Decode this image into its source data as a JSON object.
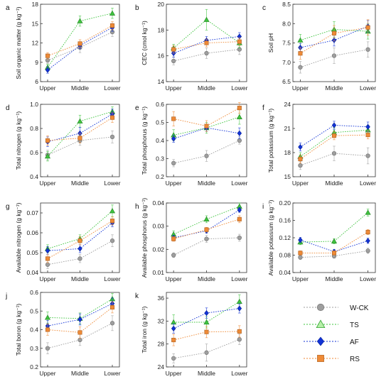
{
  "series_styles": [
    {
      "name": "W-CK",
      "color": "#9e9e9e",
      "marker": "circle"
    },
    {
      "name": "TS",
      "color": "#3ec43e",
      "marker": "triangle"
    },
    {
      "name": "AF",
      "color": "#1133d6",
      "marker": "diamond"
    },
    {
      "name": "RS",
      "color": "#ef8a36",
      "marker": "square"
    }
  ],
  "chart_data": [
    {
      "id": "a",
      "type": "line",
      "ylabel": "Soil organic matter (g kg⁻¹)",
      "categories": [
        "Upper",
        "Middle",
        "Lower"
      ],
      "ylim": [
        6,
        18
      ],
      "yticks": [
        6,
        9,
        12,
        15,
        18
      ],
      "yfmt": 0,
      "series": [
        {
          "name": "W-CK",
          "values": [
            9.3,
            11.3,
            13.7
          ],
          "err": [
            0.5,
            0.8,
            0.7
          ]
        },
        {
          "name": "TS",
          "values": [
            8.2,
            15.4,
            16.6
          ],
          "err": [
            0.5,
            0.8,
            0.8
          ]
        },
        {
          "name": "AF",
          "values": [
            7.8,
            11.6,
            14.4
          ],
          "err": [
            0.5,
            0.5,
            0.6
          ]
        },
        {
          "name": "RS",
          "values": [
            10.0,
            11.9,
            14.7
          ],
          "err": [
            0.5,
            0.6,
            0.6
          ]
        }
      ]
    },
    {
      "id": "b",
      "type": "line",
      "ylabel": "CEC (cmol kg⁻¹)",
      "categories": [
        "Upper",
        "Middle",
        "Lower"
      ],
      "ylim": [
        14,
        20
      ],
      "yticks": [
        14,
        16,
        18,
        20
      ],
      "yfmt": 0,
      "series": [
        {
          "name": "W-CK",
          "values": [
            15.6,
            16.2,
            16.5
          ],
          "err": [
            0.3,
            0.4,
            0.4
          ]
        },
        {
          "name": "TS",
          "values": [
            16.6,
            18.8,
            17.0
          ],
          "err": [
            0.3,
            0.8,
            0.4
          ]
        },
        {
          "name": "AF",
          "values": [
            16.2,
            17.2,
            17.5
          ],
          "err": [
            0.3,
            0.3,
            0.3
          ]
        },
        {
          "name": "RS",
          "values": [
            16.5,
            17.0,
            17.1
          ],
          "err": [
            0.3,
            0.3,
            0.3
          ]
        }
      ]
    },
    {
      "id": "c",
      "type": "line",
      "ylabel": "Soil pH",
      "categories": [
        "Upper",
        "Middle",
        "Lower"
      ],
      "ylim": [
        6.5,
        8.5
      ],
      "yticks": [
        6.5,
        7.0,
        7.5,
        8.0,
        8.5
      ],
      "yfmt": 1,
      "series": [
        {
          "name": "W-CK",
          "values": [
            6.87,
            7.17,
            7.33
          ],
          "err": [
            0.15,
            0.2,
            0.2
          ]
        },
        {
          "name": "TS",
          "values": [
            7.57,
            7.85,
            7.8
          ],
          "err": [
            0.15,
            0.2,
            0.2
          ]
        },
        {
          "name": "AF",
          "values": [
            7.38,
            7.57,
            7.93
          ],
          "err": [
            0.1,
            0.15,
            0.15
          ]
        },
        {
          "name": "RS",
          "values": [
            7.23,
            7.75,
            7.9
          ],
          "err": [
            0.15,
            0.2,
            0.2
          ]
        }
      ]
    },
    {
      "id": "d",
      "type": "line",
      "ylabel": "Total nitrogen (g kg⁻¹)",
      "categories": [
        "Upper",
        "Middle",
        "Lower"
      ],
      "ylim": [
        0.4,
        1.0
      ],
      "yticks": [
        0.4,
        0.6,
        0.8,
        1.0
      ],
      "yfmt": 1,
      "series": [
        {
          "name": "W-CK",
          "values": [
            0.58,
            0.7,
            0.73
          ],
          "err": [
            0.04,
            0.04,
            0.05
          ]
        },
        {
          "name": "TS",
          "values": [
            0.57,
            0.86,
            0.94
          ],
          "err": [
            0.04,
            0.05,
            0.04
          ]
        },
        {
          "name": "AF",
          "values": [
            0.69,
            0.76,
            0.92
          ],
          "err": [
            0.04,
            0.05,
            0.04
          ]
        },
        {
          "name": "RS",
          "values": [
            0.7,
            0.72,
            0.89
          ],
          "err": [
            0.04,
            0.04,
            0.04
          ]
        }
      ]
    },
    {
      "id": "e",
      "type": "line",
      "ylabel": "Total phosphorus (g kg⁻¹)",
      "categories": [
        "Upper",
        "Middle",
        "Lower"
      ],
      "ylim": [
        0.2,
        0.6
      ],
      "yticks": [
        0.2,
        0.3,
        0.4,
        0.5,
        0.6
      ],
      "yfmt": 1,
      "series": [
        {
          "name": "W-CK",
          "values": [
            0.275,
            0.315,
            0.4
          ],
          "err": [
            0.02,
            0.03,
            0.02
          ]
        },
        {
          "name": "TS",
          "values": [
            0.43,
            0.47,
            0.53
          ],
          "err": [
            0.03,
            0.03,
            0.04
          ]
        },
        {
          "name": "AF",
          "values": [
            0.41,
            0.47,
            0.44
          ],
          "err": [
            0.02,
            0.02,
            0.03
          ]
        },
        {
          "name": "RS",
          "values": [
            0.52,
            0.48,
            0.58
          ],
          "err": [
            0.04,
            0.03,
            0.03
          ]
        }
      ]
    },
    {
      "id": "f",
      "type": "line",
      "ylabel": "Total potassium (g kg⁻¹)",
      "categories": [
        "Upper",
        "Middle",
        "Lower"
      ],
      "ylim": [
        15,
        24
      ],
      "yticks": [
        15,
        18,
        21,
        24
      ],
      "yfmt": 0,
      "series": [
        {
          "name": "W-CK",
          "values": [
            16.4,
            17.9,
            17.6
          ],
          "err": [
            0.5,
            0.9,
            1.0
          ]
        },
        {
          "name": "TS",
          "values": [
            17.5,
            20.5,
            20.8
          ],
          "err": [
            0.5,
            0.6,
            0.6
          ]
        },
        {
          "name": "AF",
          "values": [
            18.7,
            21.4,
            21.2
          ],
          "err": [
            0.5,
            0.5,
            0.6
          ]
        },
        {
          "name": "RS",
          "values": [
            17.2,
            20.1,
            20.2
          ],
          "err": [
            0.5,
            0.5,
            0.5
          ]
        }
      ]
    },
    {
      "id": "g",
      "type": "line",
      "ylabel": "Available nitrogen (g kg⁻¹)",
      "categories": [
        "Upper",
        "Middle",
        "Lower"
      ],
      "ylim": [
        0.04,
        0.075
      ],
      "yticks": [
        0.04,
        0.05,
        0.06,
        0.07
      ],
      "yfmt": 2,
      "series": [
        {
          "name": "W-CK",
          "values": [
            0.044,
            0.047,
            0.056
          ],
          "err": [
            0.002,
            0.002,
            0.003
          ]
        },
        {
          "name": "TS",
          "values": [
            0.052,
            0.057,
            0.071
          ],
          "err": [
            0.002,
            0.002,
            0.003
          ]
        },
        {
          "name": "AF",
          "values": [
            0.051,
            0.052,
            0.065
          ],
          "err": [
            0.002,
            0.002,
            0.002
          ]
        },
        {
          "name": "RS",
          "values": [
            0.047,
            0.056,
            0.066
          ],
          "err": [
            0.002,
            0.002,
            0.002
          ]
        }
      ]
    },
    {
      "id": "h",
      "type": "line",
      "ylabel": "Available phosphorus (g kg⁻¹)",
      "categories": [
        "Upper",
        "Middle",
        "Lower"
      ],
      "ylim": [
        0.01,
        0.04
      ],
      "yticks": [
        0.01,
        0.02,
        0.03,
        0.04
      ],
      "yfmt": 2,
      "series": [
        {
          "name": "W-CK",
          "values": [
            0.0175,
            0.0245,
            0.025
          ],
          "err": [
            0.001,
            0.0015,
            0.0015
          ]
        },
        {
          "name": "TS",
          "values": [
            0.0265,
            0.033,
            0.0385
          ],
          "err": [
            0.0015,
            0.0015,
            0.0015
          ]
        },
        {
          "name": "AF",
          "values": [
            0.025,
            0.028,
            0.037
          ],
          "err": [
            0.001,
            0.001,
            0.001
          ]
        },
        {
          "name": "RS",
          "values": [
            0.0245,
            0.0285,
            0.033
          ],
          "err": [
            0.001,
            0.001,
            0.0015
          ]
        }
      ]
    },
    {
      "id": "i",
      "type": "line",
      "ylabel": "Available potassium (g kg⁻¹)",
      "categories": [
        "Upper",
        "Middle",
        "Lower"
      ],
      "ylim": [
        0.04,
        0.2
      ],
      "yticks": [
        0.04,
        0.08,
        0.12,
        0.16,
        0.2
      ],
      "yfmt": 2,
      "series": [
        {
          "name": "W-CK",
          "values": [
            0.075,
            0.078,
            0.09
          ],
          "err": [
            0.005,
            0.005,
            0.006
          ]
        },
        {
          "name": "TS",
          "values": [
            0.11,
            0.112,
            0.178
          ],
          "err": [
            0.006,
            0.006,
            0.008
          ]
        },
        {
          "name": "AF",
          "values": [
            0.115,
            0.088,
            0.113
          ],
          "err": [
            0.006,
            0.005,
            0.006
          ]
        },
        {
          "name": "RS",
          "values": [
            0.085,
            0.085,
            0.133
          ],
          "err": [
            0.005,
            0.005,
            0.006
          ]
        }
      ]
    },
    {
      "id": "j",
      "type": "line",
      "ylabel": "Total boron (g kg⁻¹)",
      "categories": [
        "Upper",
        "Middle",
        "Lower"
      ],
      "ylim": [
        0.2,
        0.6
      ],
      "yticks": [
        0.2,
        0.3,
        0.4,
        0.5,
        0.6
      ],
      "yfmt": 1,
      "series": [
        {
          "name": "W-CK",
          "values": [
            0.3,
            0.345,
            0.435
          ],
          "err": [
            0.03,
            0.03,
            0.04
          ]
        },
        {
          "name": "TS",
          "values": [
            0.465,
            0.46,
            0.565
          ],
          "err": [
            0.03,
            0.03,
            0.03
          ]
        },
        {
          "name": "AF",
          "values": [
            0.42,
            0.455,
            0.54
          ],
          "err": [
            0.03,
            0.03,
            0.03
          ]
        },
        {
          "name": "RS",
          "values": [
            0.4,
            0.385,
            0.52
          ],
          "err": [
            0.03,
            0.03,
            0.03
          ]
        }
      ]
    },
    {
      "id": "k",
      "type": "line",
      "ylabel": "Total iron (g kg⁻¹)",
      "categories": [
        "Upper",
        "Middle",
        "Lower"
      ],
      "ylim": [
        24,
        37
      ],
      "yticks": [
        24,
        28,
        32,
        36
      ],
      "yfmt": 0,
      "series": [
        {
          "name": "W-CK",
          "values": [
            25.5,
            26.5,
            28.8
          ],
          "err": [
            0.8,
            1.5,
            0.9
          ]
        },
        {
          "name": "TS",
          "values": [
            31.8,
            31.8,
            35.4
          ],
          "err": [
            1.3,
            1.0,
            1.2
          ]
        },
        {
          "name": "AF",
          "values": [
            30.7,
            33.4,
            34.2
          ],
          "err": [
            0.8,
            0.9,
            0.8
          ]
        },
        {
          "name": "RS",
          "values": [
            28.7,
            30.1,
            30.2
          ],
          "err": [
            1.0,
            1.0,
            1.0
          ]
        }
      ]
    }
  ]
}
